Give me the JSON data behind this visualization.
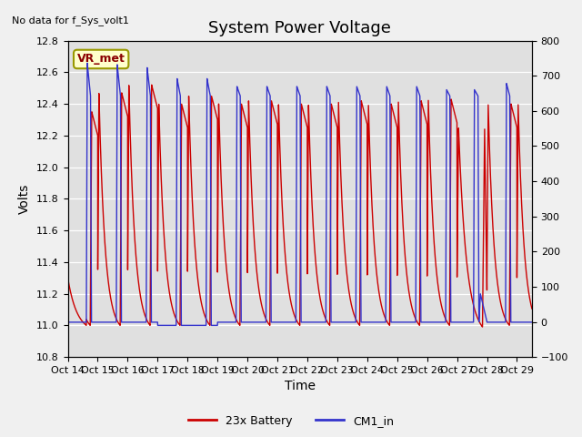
{
  "title": "System Power Voltage",
  "no_data_label": "No data for f_Sys_volt1",
  "xlabel": "Time",
  "ylabel": "Volts",
  "ylim_left": [
    10.8,
    12.8
  ],
  "ylim_right": [
    -100,
    800
  ],
  "yticks_left": [
    10.8,
    11.0,
    11.2,
    11.4,
    11.6,
    11.8,
    12.0,
    12.2,
    12.4,
    12.6,
    12.8
  ],
  "yticks_right": [
    -100,
    0,
    100,
    200,
    300,
    400,
    500,
    600,
    700,
    800
  ],
  "xtick_labels": [
    "Oct 14",
    "Oct 15",
    "Oct 16",
    "Oct 17",
    "Oct 18",
    "Oct 19",
    "Oct 20",
    "Oct 21",
    "Oct 22",
    "Oct 23",
    "Oct 24",
    "Oct 25",
    "Oct 26",
    "Oct 27",
    "Oct 28",
    "Oct 29"
  ],
  "vr_met_label": "VR_met",
  "legend_red_label": "23x Battery",
  "legend_blue_label": "CM1_in",
  "red_color": "#cc0000",
  "blue_color": "#3333cc",
  "plot_bg_color": "#e0e0e0",
  "fig_bg_color": "#f0f0f0",
  "grid_color": "#ffffff",
  "title_fontsize": 13,
  "label_fontsize": 10,
  "tick_fontsize": 8,
  "figwidth": 6.4,
  "figheight": 4.8,
  "dpi": 100
}
